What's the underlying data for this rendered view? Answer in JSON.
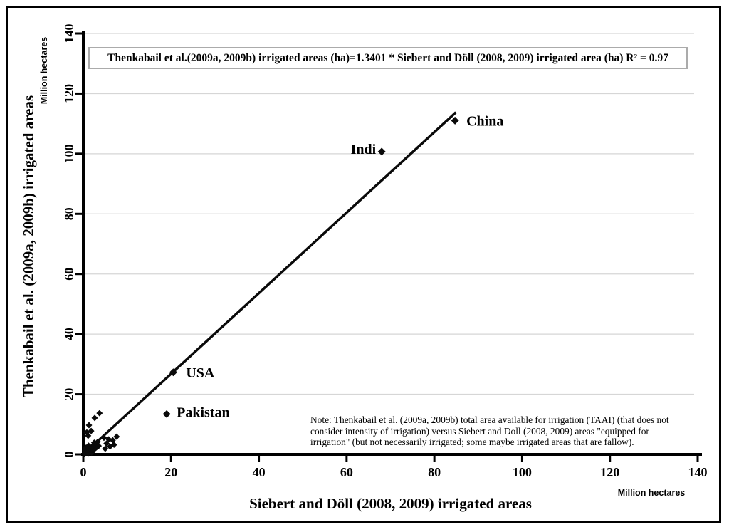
{
  "chart_data": {
    "type": "scatter",
    "title": "Thenkabail et al.(2009a, 2009b) irrigated areas (ha)=1.3401 * Siebert and Döll (2008, 2009) irrigated area (ha) R² = 0.97",
    "xlabel": "Siebert and Döll (2008, 2009)  irrigated areas",
    "ylabel": "Thenkabail et al. (2009a, 2009b) irrigated areas",
    "unit_label": "Million hectares",
    "xlim": [
      0,
      140
    ],
    "ylim": [
      0,
      140
    ],
    "xticks": [
      0,
      20,
      40,
      60,
      80,
      100,
      120,
      140
    ],
    "yticks": [
      0,
      20,
      40,
      60,
      80,
      100,
      120,
      140
    ],
    "grid": "horizontal",
    "legend": "none",
    "trendline": {
      "slope": 1.3401,
      "r_squared": 0.97,
      "x_start": 1.5,
      "x_end": 84.9
    },
    "labeled_points": [
      {
        "name": "China",
        "x": 84.7,
        "y": 111.0,
        "label_side": "right",
        "label_offset": [
          16,
          7
        ]
      },
      {
        "name": "Indi",
        "x": 68.0,
        "y": 100.7,
        "label_side": "left",
        "label_offset": [
          -8,
          3
        ]
      },
      {
        "name": "USA",
        "x": 20.5,
        "y": 27.3,
        "label_side": "right",
        "label_offset": [
          18,
          7
        ]
      },
      {
        "name": "Pakistan",
        "x": 19.0,
        "y": 13.4,
        "label_side": "right",
        "label_offset": [
          14,
          4
        ]
      }
    ],
    "cluster_points": [
      [
        0.3,
        0.3
      ],
      [
        0.7,
        0.6
      ],
      [
        1.1,
        0.4
      ],
      [
        1.5,
        0.9
      ],
      [
        1.9,
        0.6
      ],
      [
        0.5,
        1.3
      ],
      [
        1.0,
        1.6
      ],
      [
        1.6,
        1.9
      ],
      [
        2.2,
        1.3
      ],
      [
        2.6,
        1.8
      ],
      [
        3.0,
        2.3
      ],
      [
        2.0,
        2.6
      ],
      [
        1.2,
        2.9
      ],
      [
        0.6,
        2.2
      ],
      [
        2.9,
        3.4
      ],
      [
        3.5,
        2.8
      ],
      [
        3.3,
        4.2
      ],
      [
        2.5,
        3.9
      ],
      [
        4.7,
        5.5
      ],
      [
        5.8,
        5.0
      ],
      [
        6.7,
        4.7
      ],
      [
        5.3,
        3.6
      ],
      [
        6.1,
        2.6
      ],
      [
        7.0,
        3.2
      ],
      [
        5.0,
        1.9
      ],
      [
        7.6,
        5.9
      ],
      [
        1.1,
        6.2
      ],
      [
        0.8,
        7.3
      ],
      [
        1.8,
        7.8
      ],
      [
        1.3,
        9.7
      ],
      [
        2.6,
        12.1
      ],
      [
        3.7,
        13.7
      ]
    ],
    "note_lines": [
      "Note: Thenkabail et al. (2009a, 2009b) total area available for irrigation (TAAI) (that does not",
      "consider intensity of irrigation) versus Siebert and Doll (2008, 2009) areas \"equipped for",
      "irrigation\" (but not necessarily irrigated; some maybe irrigated areas that are fallow)."
    ],
    "colors": {
      "marker": "#0a0a0a",
      "trendline": "#0a0a0a",
      "grid": "#d6d6d6",
      "axis": "#000000"
    }
  }
}
